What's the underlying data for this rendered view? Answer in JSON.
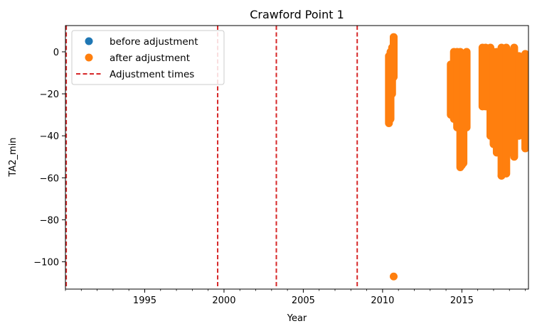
{
  "chart_data": {
    "type": "scatter",
    "title": "Crawford Point 1",
    "xlabel": "Year",
    "ylabel": "TA2_min",
    "xlim": [
      1990,
      2019.2
    ],
    "ylim": [
      -113,
      12.5
    ],
    "x_ticks": [
      1995,
      2000,
      2005,
      2010,
      2015
    ],
    "x_minor_step": 1,
    "y_ticks": [
      0,
      -20,
      -40,
      -60,
      -80,
      -100
    ],
    "y_tick_labels": [
      "0",
      "−20",
      "−40",
      "−60",
      "−80",
      "−100"
    ],
    "legend_location": "upper-left",
    "series": [
      {
        "name": "before adjustment",
        "marker": "circle",
        "color": "#1f77b4",
        "ranges": []
      },
      {
        "name": "after adjustment",
        "marker": "circle",
        "color": "#ff7f0e",
        "ranges": [
          {
            "x": 2010.4,
            "y_min": -34,
            "y_max": -2
          },
          {
            "x": 2010.5,
            "y_min": -32,
            "y_max": 0
          },
          {
            "x": 2010.6,
            "y_min": -20,
            "y_max": 2
          },
          {
            "x": 2010.7,
            "y_min": -12,
            "y_max": 7
          },
          {
            "x": 2014.3,
            "y_min": -30,
            "y_max": -6
          },
          {
            "x": 2014.5,
            "y_min": -32,
            "y_max": 0
          },
          {
            "x": 2014.7,
            "y_min": -36,
            "y_max": 0
          },
          {
            "x": 2014.9,
            "y_min": -55,
            "y_max": 0
          },
          {
            "x": 2015.1,
            "y_min": -53,
            "y_max": -2
          },
          {
            "x": 2015.3,
            "y_min": -36,
            "y_max": 0
          },
          {
            "x": 2016.3,
            "y_min": -26,
            "y_max": 2
          },
          {
            "x": 2016.5,
            "y_min": -26,
            "y_max": 2
          },
          {
            "x": 2016.8,
            "y_min": -40,
            "y_max": 2
          },
          {
            "x": 2017.0,
            "y_min": -44,
            "y_max": 0
          },
          {
            "x": 2017.2,
            "y_min": -48,
            "y_max": 0
          },
          {
            "x": 2017.5,
            "y_min": -59,
            "y_max": 2
          },
          {
            "x": 2017.8,
            "y_min": -58,
            "y_max": 2
          },
          {
            "x": 2018.0,
            "y_min": -48,
            "y_max": 0
          },
          {
            "x": 2018.3,
            "y_min": -50,
            "y_max": 2
          },
          {
            "x": 2018.6,
            "y_min": -40,
            "y_max": -2
          },
          {
            "x": 2019.0,
            "y_min": -46,
            "y_max": -1
          }
        ],
        "points": [
          {
            "x": 2010.7,
            "y": -107
          },
          {
            "x": 2010.7,
            "y": 7
          },
          {
            "x": 2015.0,
            "y": -54
          },
          {
            "x": 2017.5,
            "y": -59
          }
        ]
      },
      {
        "name": "Adjustment times",
        "line_style": "dashed",
        "color": "#d62728",
        "x_lines": [
          1990.05,
          1999.6,
          2003.3,
          2008.4
        ]
      }
    ]
  }
}
